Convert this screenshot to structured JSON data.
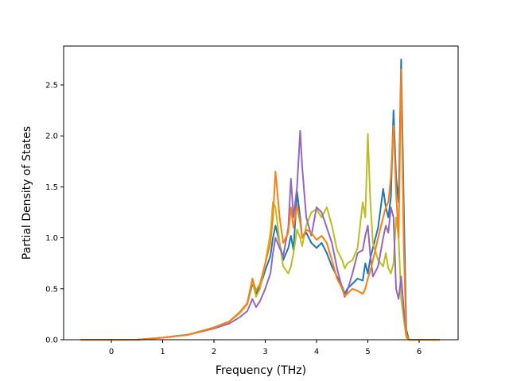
{
  "chart_data": {
    "type": "line",
    "xlabel": "Frequency (THz)",
    "ylabel": "Partial Density of States",
    "xlim": [
      -0.9,
      6.75
    ],
    "ylim": [
      0.0,
      2.5
    ],
    "grid": false,
    "xticks": [
      0,
      1,
      2,
      3,
      4,
      5,
      6
    ],
    "yticks": [
      0.0,
      0.5,
      1.0,
      1.5,
      2.0,
      2.5
    ],
    "xtick_labels": [
      "0",
      "1",
      "2",
      "3",
      "4",
      "5",
      "6"
    ],
    "ytick_labels": [
      "0.0",
      "0.5",
      "1.0",
      "1.5",
      "2.0",
      "2.5"
    ],
    "series": [
      {
        "color": "#1f77b4",
        "x": [
          -0.6,
          0.0,
          0.5,
          1.0,
          1.5,
          2.0,
          2.3,
          2.5,
          2.65,
          2.75,
          2.82,
          2.9,
          3.0,
          3.1,
          3.15,
          3.2,
          3.28,
          3.35,
          3.45,
          3.5,
          3.55,
          3.62,
          3.68,
          3.72,
          3.8,
          3.9,
          4.0,
          4.1,
          4.2,
          4.3,
          4.4,
          4.5,
          4.55,
          4.6,
          4.7,
          4.8,
          4.9,
          4.95,
          5.0,
          5.05,
          5.1,
          5.2,
          5.3,
          5.35,
          5.4,
          5.45,
          5.5,
          5.55,
          5.6,
          5.65,
          5.7,
          5.75,
          5.8,
          5.85,
          6.0,
          6.4
        ],
        "y": [
          0.0,
          0.0,
          0.0,
          0.02,
          0.05,
          0.12,
          0.18,
          0.26,
          0.35,
          0.55,
          0.45,
          0.52,
          0.68,
          0.82,
          1.0,
          1.12,
          0.95,
          0.78,
          0.9,
          1.02,
          0.88,
          1.45,
          1.2,
          1.0,
          1.05,
          0.95,
          0.9,
          0.95,
          0.85,
          0.72,
          0.62,
          0.52,
          0.45,
          0.5,
          0.55,
          0.6,
          0.58,
          0.75,
          0.65,
          0.8,
          0.9,
          1.1,
          1.48,
          1.3,
          1.2,
          1.4,
          2.25,
          1.6,
          1.35,
          2.75,
          1.3,
          0.1,
          0.0,
          0.0,
          0.0,
          0.0
        ]
      },
      {
        "color": "#bcbd22",
        "x": [
          -0.6,
          0.0,
          0.5,
          1.0,
          1.5,
          2.0,
          2.3,
          2.5,
          2.65,
          2.75,
          2.82,
          2.9,
          3.0,
          3.1,
          3.15,
          3.2,
          3.28,
          3.35,
          3.45,
          3.5,
          3.55,
          3.62,
          3.68,
          3.72,
          3.8,
          3.9,
          4.0,
          4.1,
          4.2,
          4.3,
          4.4,
          4.5,
          4.55,
          4.6,
          4.7,
          4.8,
          4.9,
          4.95,
          5.0,
          5.05,
          5.1,
          5.2,
          5.3,
          5.35,
          5.4,
          5.45,
          5.5,
          5.55,
          5.6,
          5.65,
          5.7,
          5.75,
          5.8,
          5.85,
          6.0,
          6.4
        ],
        "y": [
          0.0,
          0.0,
          0.0,
          0.02,
          0.05,
          0.12,
          0.18,
          0.26,
          0.35,
          0.58,
          0.42,
          0.5,
          0.75,
          1.05,
          1.35,
          1.3,
          0.95,
          0.72,
          0.65,
          0.72,
          0.85,
          1.08,
          1.0,
          0.92,
          1.12,
          1.25,
          1.28,
          1.2,
          1.3,
          1.12,
          0.88,
          0.78,
          0.7,
          0.75,
          0.78,
          0.9,
          1.35,
          1.2,
          2.02,
          1.35,
          0.95,
          0.78,
          0.72,
          0.85,
          0.7,
          0.65,
          0.75,
          1.2,
          1.0,
          0.4,
          0.2,
          0.02,
          0.0,
          0.0,
          0.0,
          0.0
        ]
      },
      {
        "color": "#9467bd",
        "x": [
          -0.6,
          0.0,
          0.5,
          1.0,
          1.5,
          2.0,
          2.3,
          2.5,
          2.65,
          2.75,
          2.82,
          2.9,
          3.0,
          3.1,
          3.15,
          3.2,
          3.28,
          3.35,
          3.45,
          3.5,
          3.55,
          3.62,
          3.68,
          3.72,
          3.8,
          3.9,
          4.0,
          4.1,
          4.2,
          4.3,
          4.4,
          4.5,
          4.55,
          4.6,
          4.7,
          4.8,
          4.9,
          4.95,
          5.0,
          5.05,
          5.1,
          5.2,
          5.3,
          5.35,
          5.4,
          5.45,
          5.5,
          5.55,
          5.6,
          5.65,
          5.7,
          5.75,
          5.8,
          5.85,
          6.0,
          6.4
        ],
        "y": [
          0.0,
          0.0,
          0.0,
          0.02,
          0.05,
          0.11,
          0.16,
          0.22,
          0.28,
          0.4,
          0.32,
          0.38,
          0.5,
          0.65,
          0.85,
          1.0,
          0.9,
          0.82,
          1.1,
          1.58,
          1.2,
          1.5,
          2.05,
          1.7,
          1.2,
          1.02,
          1.3,
          1.25,
          1.1,
          0.95,
          0.7,
          0.5,
          0.42,
          0.48,
          0.65,
          0.85,
          0.88,
          1.02,
          1.12,
          0.82,
          0.62,
          0.72,
          1.0,
          1.12,
          1.05,
          1.3,
          1.2,
          0.5,
          0.4,
          0.62,
          0.3,
          0.05,
          0.0,
          0.0,
          0.0,
          0.0
        ]
      },
      {
        "color": "#ff7f0e",
        "x": [
          -0.6,
          0.0,
          0.5,
          1.0,
          1.5,
          2.0,
          2.3,
          2.5,
          2.65,
          2.75,
          2.82,
          2.9,
          3.0,
          3.1,
          3.15,
          3.2,
          3.28,
          3.35,
          3.45,
          3.5,
          3.55,
          3.62,
          3.68,
          3.72,
          3.8,
          3.9,
          4.0,
          4.1,
          4.2,
          4.3,
          4.4,
          4.5,
          4.55,
          4.6,
          4.7,
          4.8,
          4.9,
          4.95,
          5.0,
          5.05,
          5.1,
          5.2,
          5.3,
          5.35,
          5.4,
          5.45,
          5.5,
          5.55,
          5.6,
          5.65,
          5.7,
          5.75,
          5.8,
          5.85,
          6.0,
          6.4
        ],
        "y": [
          0.0,
          0.0,
          0.0,
          0.02,
          0.05,
          0.12,
          0.18,
          0.27,
          0.36,
          0.6,
          0.48,
          0.55,
          0.75,
          0.95,
          1.2,
          1.65,
          1.2,
          0.95,
          1.05,
          1.3,
          1.1,
          1.32,
          1.15,
          1.0,
          1.08,
          1.05,
          0.98,
          1.02,
          0.95,
          0.78,
          0.6,
          0.5,
          0.43,
          0.45,
          0.5,
          0.48,
          0.45,
          0.5,
          0.6,
          0.68,
          0.78,
          1.0,
          1.2,
          1.3,
          1.35,
          1.6,
          2.1,
          1.45,
          1.0,
          2.65,
          0.9,
          0.05,
          0.0,
          0.0,
          0.0,
          0.0
        ]
      }
    ]
  }
}
